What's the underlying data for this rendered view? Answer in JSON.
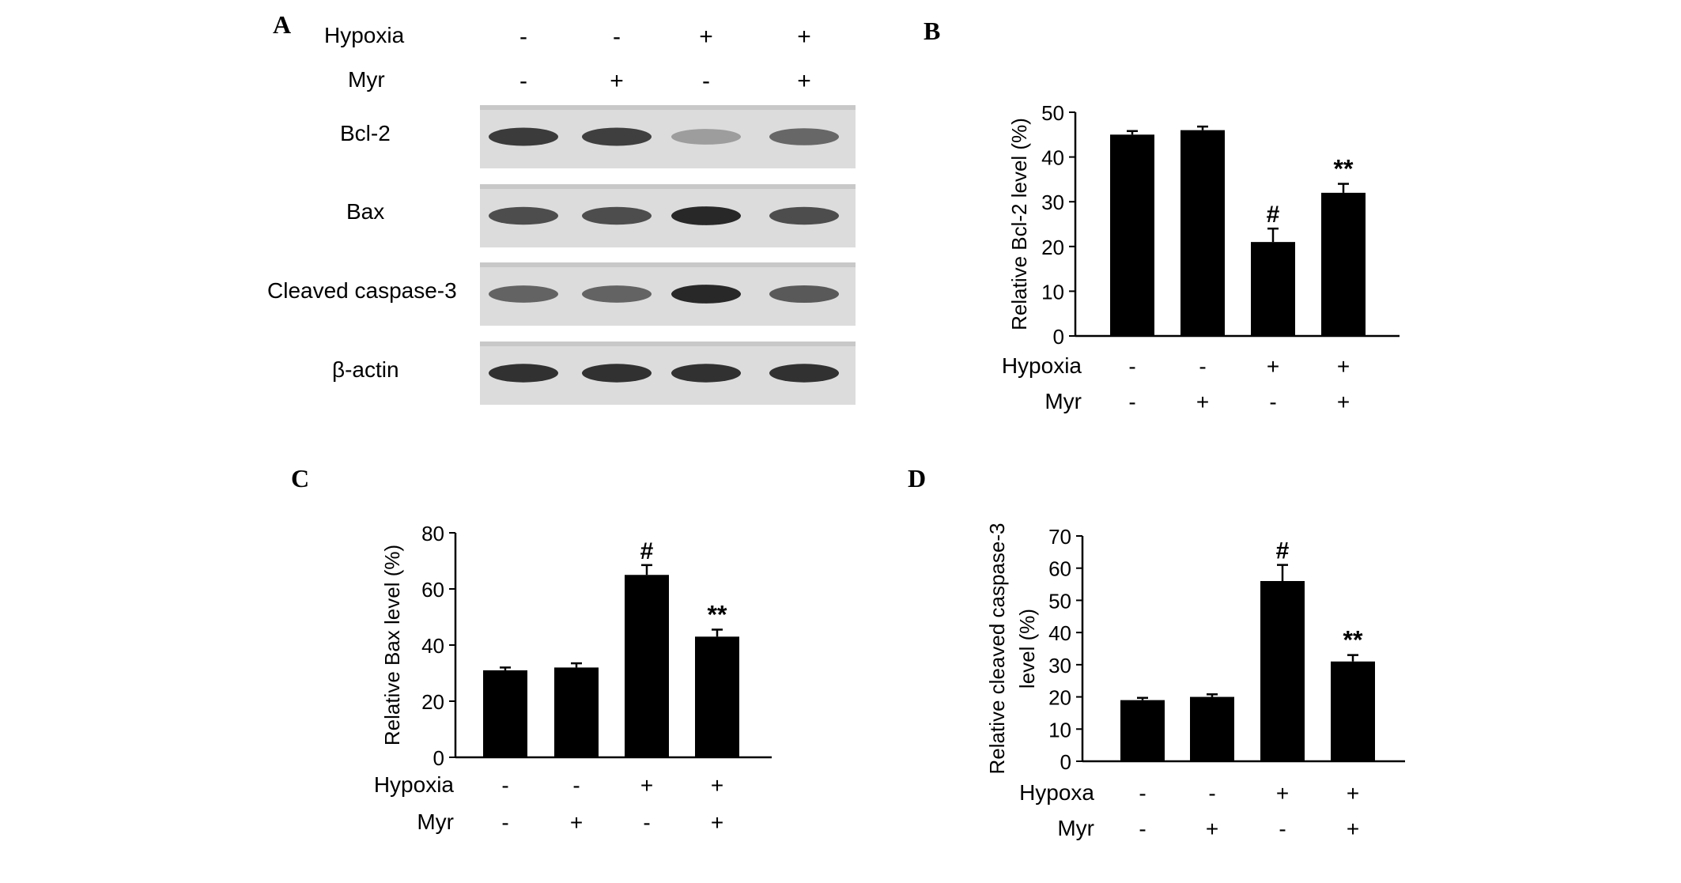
{
  "panel_labels": {
    "a": "A",
    "b": "B",
    "c": "C",
    "d": "D"
  },
  "blot": {
    "conditions": [
      {
        "label": "Hypoxia",
        "values": [
          "-",
          "-",
          "+",
          "+"
        ]
      },
      {
        "label": "Myr",
        "values": [
          "-",
          "+",
          "-",
          "+"
        ]
      }
    ],
    "rows": [
      {
        "label": "Bcl-2",
        "band_intensity": [
          0.85,
          0.82,
          0.3,
          0.6
        ]
      },
      {
        "label": "Bax",
        "band_intensity": [
          0.75,
          0.75,
          0.95,
          0.75
        ]
      },
      {
        "label": "Cleaved caspase-3",
        "band_intensity": [
          0.62,
          0.62,
          0.95,
          0.68
        ]
      },
      {
        "label": "β-actin",
        "band_intensity": [
          0.9,
          0.9,
          0.9,
          0.9
        ]
      }
    ]
  },
  "chart_data": [
    {
      "panel": "B",
      "type": "bar",
      "ylabel": "Relative Bcl-2 level (%)",
      "ylim": [
        0,
        50
      ],
      "yticks": [
        0,
        10,
        20,
        30,
        40,
        50
      ],
      "values": [
        45,
        46,
        21,
        32
      ],
      "errors": [
        0.8,
        0.8,
        3,
        2
      ],
      "annotations": [
        "",
        "",
        "#",
        "**"
      ],
      "conditions": [
        {
          "label": "Hypoxia",
          "values": [
            "-",
            "-",
            "+",
            "+"
          ]
        },
        {
          "label": "Myr",
          "values": [
            "-",
            "+",
            "-",
            "+"
          ]
        }
      ],
      "bar_color": "#000000"
    },
    {
      "panel": "C",
      "type": "bar",
      "ylabel": "Relative Bax level (%)",
      "ylim": [
        0,
        80
      ],
      "yticks": [
        0,
        20,
        40,
        60,
        80
      ],
      "values": [
        31,
        32,
        65,
        43
      ],
      "errors": [
        1,
        1.5,
        3.5,
        2.5
      ],
      "annotations": [
        "",
        "",
        "#",
        "**"
      ],
      "conditions": [
        {
          "label": "Hypoxia",
          "values": [
            "-",
            "-",
            "+",
            "+"
          ]
        },
        {
          "label": "Myr",
          "values": [
            "-",
            "+",
            "-",
            "+"
          ]
        }
      ],
      "bar_color": "#000000"
    },
    {
      "panel": "D",
      "type": "bar",
      "ylabel": [
        "Relative cleaved caspase-3",
        "level (%)"
      ],
      "ylim": [
        0,
        70
      ],
      "yticks": [
        0,
        10,
        20,
        30,
        40,
        50,
        60,
        70
      ],
      "values": [
        19,
        20,
        56,
        31
      ],
      "errors": [
        0.7,
        0.8,
        5,
        2
      ],
      "annotations": [
        "",
        "",
        "#",
        "**"
      ],
      "conditions": [
        {
          "label": "Hypoxa",
          "values": [
            "-",
            "-",
            "+",
            "+"
          ]
        },
        {
          "label": "Myr",
          "values": [
            "-",
            "+",
            "-",
            "+"
          ]
        }
      ],
      "bar_color": "#000000"
    }
  ]
}
